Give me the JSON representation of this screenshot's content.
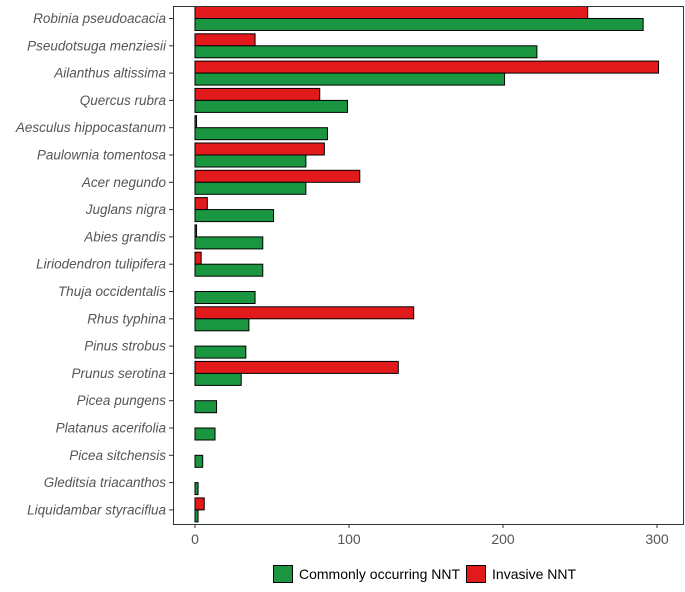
{
  "chart_data": {
    "type": "bar",
    "orientation": "horizontal",
    "title": "",
    "xlabel": "",
    "ylabel": "",
    "xlim": [
      0,
      308
    ],
    "xticks": [
      0,
      100,
      200,
      300
    ],
    "grid": false,
    "legend_position": "bottom",
    "categories": [
      "Robinia pseudoacacia",
      "Pseudotsuga menziesii",
      "Ailanthus altissima",
      "Quercus rubra",
      "Aesculus hippocastanum",
      "Paulownia tomentosa",
      "Acer negundo",
      "Juglans nigra",
      "Abies grandis",
      "Liriodendron tulipifera",
      "Thuja occidentalis",
      "Rhus typhina",
      "Pinus strobus",
      "Prunus serotina",
      "Picea pungens",
      "Platanus acerifolia",
      "Picea sitchensis",
      "Gleditsia triacanthos",
      "Liquidambar styraciflua"
    ],
    "series": [
      {
        "name": "Invasive NNT",
        "color": "#e31a1c",
        "values": [
          255,
          39,
          301,
          81,
          1,
          84,
          107,
          8,
          1,
          4,
          0,
          142,
          0,
          132,
          0,
          0,
          0,
          0,
          6
        ]
      },
      {
        "name": "Commonly occurring NNT",
        "color": "#1a9641",
        "values": [
          291,
          222,
          201,
          99,
          86,
          72,
          72,
          51,
          44,
          44,
          39,
          35,
          33,
          30,
          14,
          13,
          5,
          2,
          2
        ]
      }
    ]
  },
  "legend": {
    "items": [
      {
        "label": "Commonly occurring NNT",
        "color": "#1a9641"
      },
      {
        "label": "Invasive NNT",
        "color": "#e31a1c"
      }
    ]
  }
}
